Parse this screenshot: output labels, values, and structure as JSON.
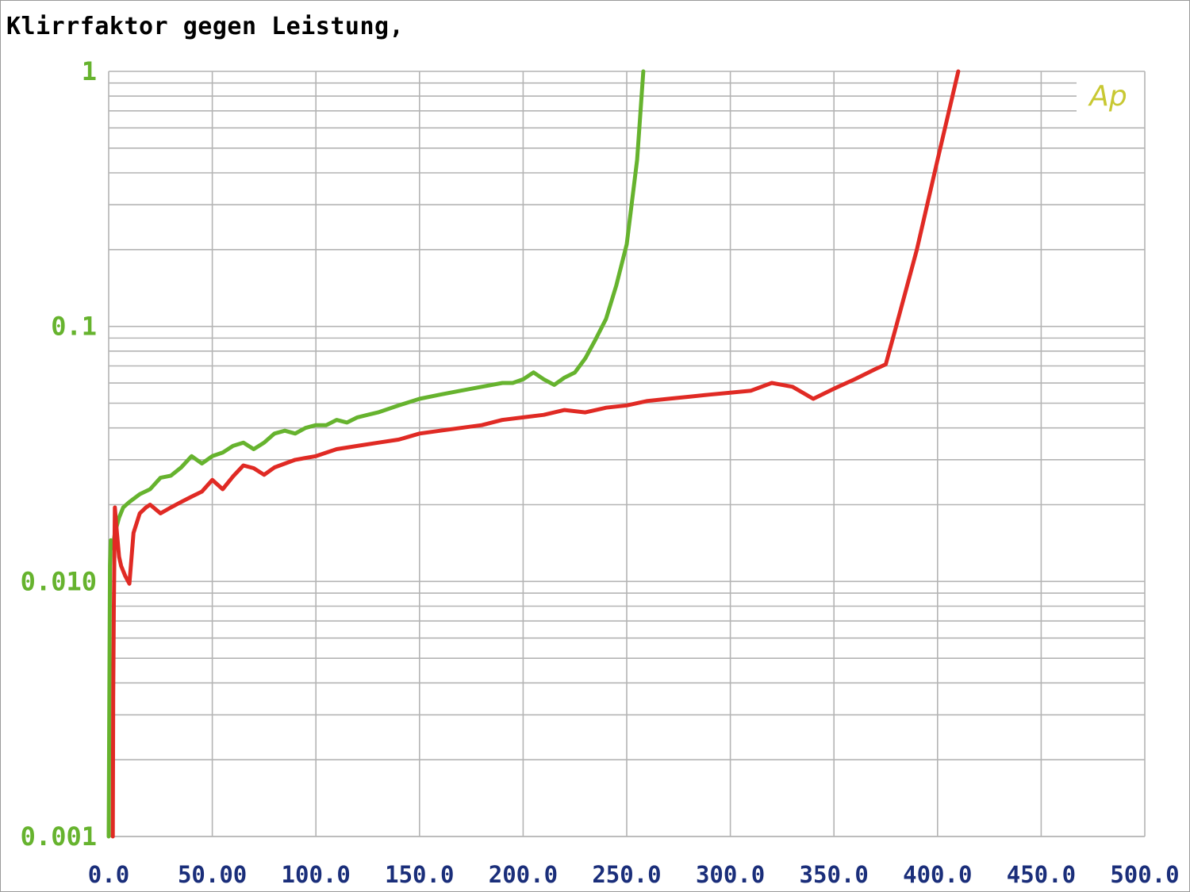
{
  "chart_data": {
    "type": "line",
    "title": "Klirrfaktor gegen Leistung,",
    "xlabel": "",
    "ylabel": "",
    "xlim": [
      0,
      500
    ],
    "ylim": [
      0.001,
      1
    ],
    "yscale": "log",
    "grid": true,
    "x_ticks": [
      "0.0",
      "50.00",
      "100.0",
      "150.0",
      "200.0",
      "250.0",
      "300.0",
      "350.0",
      "400.0",
      "450.0",
      "500.0"
    ],
    "y_ticks": [
      {
        "value": 1,
        "label": "1"
      },
      {
        "value": 0.1,
        "label": "0.1"
      },
      {
        "value": 0.01,
        "label": "0.010"
      },
      {
        "value": 0.001,
        "label": "0.001"
      }
    ],
    "logo_text": "Ap",
    "colors": {
      "green_series": "#66b32e",
      "red_series": "#e02a24",
      "x_tick_text": "#1a2e7a",
      "y_tick_text": "#66b32e",
      "grid": "#b4b4b4",
      "logo": "#c8c832"
    },
    "series": [
      {
        "color": "#66b32e",
        "x": [
          0,
          0.3,
          0.6,
          1,
          2,
          3,
          5,
          7,
          10,
          15,
          20,
          25,
          30,
          35,
          40,
          45,
          50,
          55,
          60,
          65,
          70,
          75,
          80,
          85,
          90,
          95,
          100,
          105,
          110,
          115,
          120,
          125,
          130,
          140,
          150,
          160,
          170,
          180,
          190,
          195,
          200,
          205,
          210,
          215,
          220,
          225,
          230,
          235,
          240,
          245,
          250,
          255,
          258
        ],
        "y": [
          0.001,
          0.0035,
          0.0115,
          0.0145,
          0.0135,
          0.0155,
          0.0178,
          0.0195,
          0.0205,
          0.022,
          0.023,
          0.0255,
          0.026,
          0.028,
          0.031,
          0.029,
          0.031,
          0.032,
          0.034,
          0.035,
          0.033,
          0.035,
          0.038,
          0.039,
          0.038,
          0.04,
          0.041,
          0.041,
          0.043,
          0.042,
          0.044,
          0.045,
          0.046,
          0.049,
          0.052,
          0.054,
          0.056,
          0.058,
          0.06,
          0.06,
          0.062,
          0.066,
          0.062,
          0.059,
          0.063,
          0.066,
          0.075,
          0.089,
          0.107,
          0.145,
          0.21,
          0.45,
          1.0
        ]
      },
      {
        "color": "#e02a24",
        "x": [
          2,
          2.2,
          2.5,
          3,
          4,
          5,
          6,
          8,
          10,
          12,
          15,
          18,
          20,
          25,
          30,
          35,
          40,
          45,
          50,
          55,
          60,
          65,
          70,
          75,
          80,
          90,
          100,
          110,
          120,
          130,
          140,
          150,
          160,
          170,
          180,
          190,
          200,
          210,
          220,
          230,
          240,
          250,
          260,
          270,
          280,
          290,
          300,
          310,
          320,
          330,
          340,
          350,
          360,
          370,
          375,
          380,
          390,
          400,
          410
        ],
        "y": [
          0.001,
          0.0035,
          0.008,
          0.0195,
          0.0155,
          0.0125,
          0.0115,
          0.0105,
          0.0098,
          0.0155,
          0.0185,
          0.0195,
          0.02,
          0.0185,
          0.0195,
          0.0205,
          0.0215,
          0.0225,
          0.025,
          0.023,
          0.0258,
          0.0285,
          0.0278,
          0.0262,
          0.028,
          0.03,
          0.031,
          0.033,
          0.034,
          0.035,
          0.036,
          0.038,
          0.039,
          0.04,
          0.041,
          0.043,
          0.044,
          0.045,
          0.047,
          0.046,
          0.048,
          0.049,
          0.051,
          0.052,
          0.053,
          0.054,
          0.055,
          0.056,
          0.06,
          0.058,
          0.052,
          0.057,
          0.062,
          0.068,
          0.071,
          0.1,
          0.2,
          0.45,
          1.0
        ]
      }
    ]
  }
}
